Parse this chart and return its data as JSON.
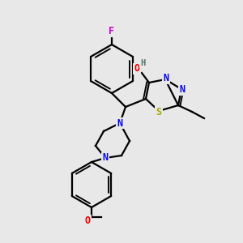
{
  "bg_color": "#e8e8e8",
  "bond_color": "#000000",
  "atom_colors": {
    "N": "#0000ee",
    "O": "#ee0000",
    "S": "#aaaa00",
    "F": "#cc00cc",
    "H": "#507070",
    "C": "#000000"
  },
  "figsize": [
    3.0,
    3.0
  ],
  "dpi": 100,
  "lw": 1.6
}
